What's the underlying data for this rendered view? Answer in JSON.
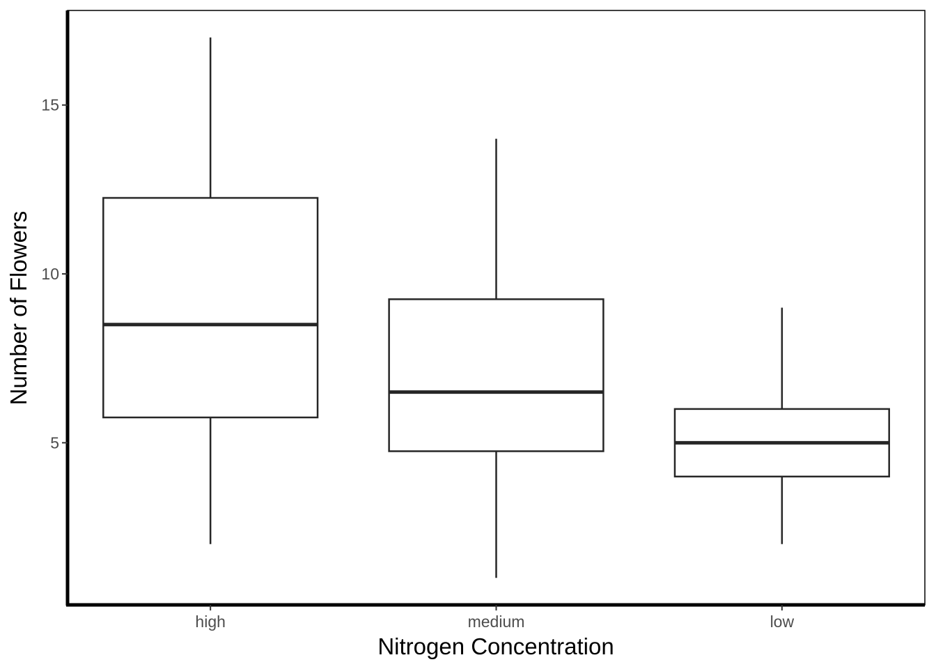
{
  "chart_data": {
    "type": "boxplot",
    "xlabel": "Nitrogen Concentration",
    "ylabel": "Number of Flowers",
    "categories": [
      "high",
      "medium",
      "low"
    ],
    "boxes": [
      {
        "category": "high",
        "min": 2,
        "q1": 5.75,
        "median": 8.5,
        "q3": 12.25,
        "max": 17
      },
      {
        "category": "medium",
        "min": 1,
        "q1": 4.75,
        "median": 6.5,
        "q3": 9.25,
        "max": 14
      },
      {
        "category": "low",
        "min": 2,
        "q1": 4.0,
        "median": 5.0,
        "q3": 6.0,
        "max": 9
      }
    ],
    "yticks": [
      5,
      10,
      15
    ],
    "ylim": [
      0.2,
      17.8
    ],
    "grid": false,
    "colors": {
      "box_stroke": "#262626",
      "box_fill": "#ffffff",
      "tick_label": "#4d4d4d",
      "axis": "#000000"
    }
  }
}
